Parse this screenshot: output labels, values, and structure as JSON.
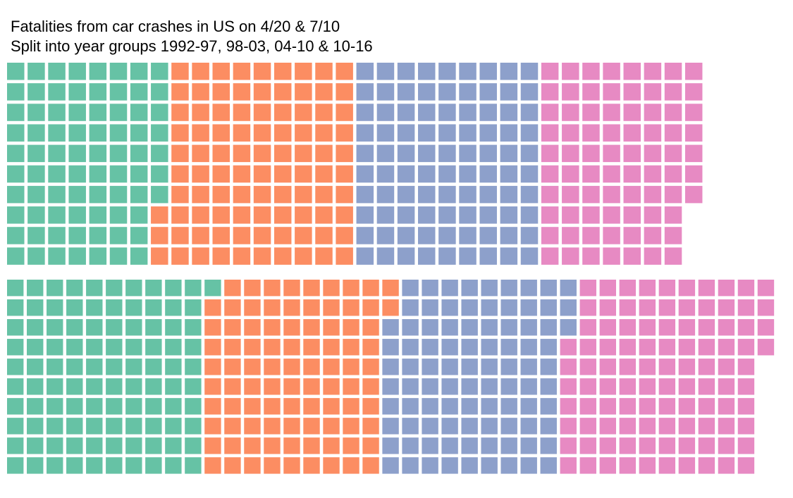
{
  "title": "Fatalities from car crashes in US on 4/20 & 7/10",
  "subtitle": "Split into year groups 1992-97, 98-03, 04-10 & 10-16",
  "chart_data": [
    {
      "type": "waffle",
      "title": "Fatalities from car crashes in US on 4/20 & 7/10",
      "subtitle": "Split into year groups 1992-97, 98-03, 04-10 & 10-16",
      "rows": 10,
      "unit": "1 square = 1 fatality",
      "series": [
        {
          "name": "",
          "value": 77,
          "color": "#66C2A5"
        },
        {
          "name": "",
          "value": 93,
          "color": "#FC8D62"
        },
        {
          "name": "",
          "value": 90,
          "color": "#8DA0CB"
        },
        {
          "name": "",
          "value": 77,
          "color": "#E78AC3"
        }
      ]
    },
    {
      "type": "waffle",
      "rows": 10,
      "unit": "1 square = 1 fatality",
      "series": [
        {
          "name": "",
          "value": 101,
          "color": "#66C2A5"
        },
        {
          "name": "",
          "value": 91,
          "color": "#FC8D62"
        },
        {
          "name": "",
          "value": 91,
          "color": "#8DA0CB"
        },
        {
          "name": "",
          "value": 101,
          "color": "#E78AC3"
        }
      ]
    }
  ]
}
